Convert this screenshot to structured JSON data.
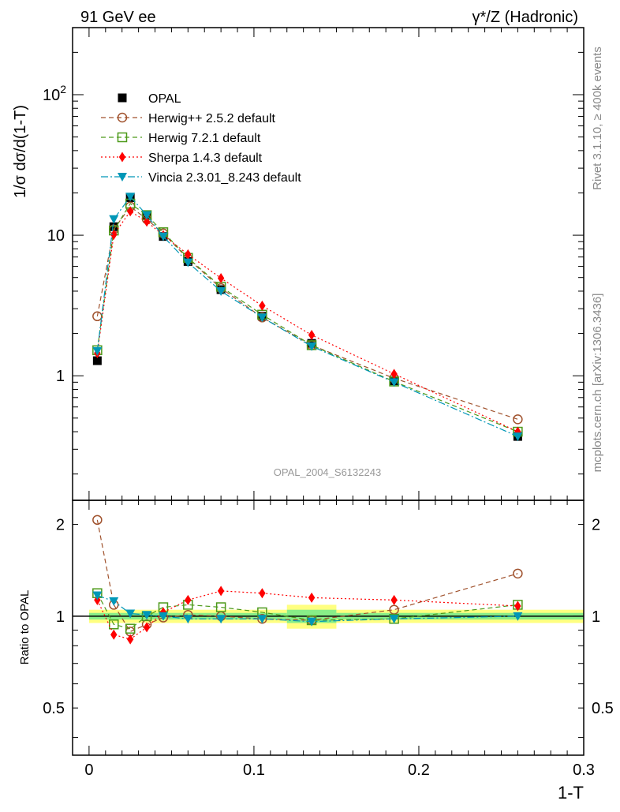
{
  "header": {
    "left": "91 GeV ee",
    "right": "γ*/Z (Hadronic)"
  },
  "side_text": {
    "top": "Rivet 3.1.10, ≥ 400k events",
    "bottom": "mcplots.cern.ch [arXiv:1306.3436]"
  },
  "watermark": "OPAL_2004_S6132243",
  "chart_data": [
    {
      "type": "scatter",
      "panel": "main",
      "ylabel": "1/σ dσ/d(1-T)",
      "xlim": [
        -0.01,
        0.3
      ],
      "ylim": [
        0.13,
        300
      ],
      "yscale": "log",
      "y_ticks": [
        {
          "value": 1,
          "label": "1"
        },
        {
          "value": 10,
          "label": "10"
        },
        {
          "value": 100,
          "label": "10",
          "sup": "2"
        }
      ],
      "x": [
        0.005,
        0.015,
        0.025,
        0.035,
        0.045,
        0.06,
        0.08,
        0.105,
        0.135,
        0.185,
        0.26
      ],
      "legend_placement": "top-left",
      "series": [
        {
          "name": "OPAL",
          "color": "#000000",
          "marker": "filled-square",
          "line": "none",
          "values": [
            1.28,
            11.5,
            18.5,
            13.8,
            9.8,
            6.5,
            4.1,
            2.65,
            1.7,
            0.92,
            0.37
          ]
        },
        {
          "name": "Herwig++ 2.5.2 default",
          "color": "#a0522d",
          "marker": "open-circle",
          "line": "dashed",
          "values": [
            2.65,
            11.0,
            16.0,
            13.0,
            10.3,
            6.8,
            4.2,
            2.6,
            1.65,
            0.96,
            0.49
          ]
        },
        {
          "name": "Herwig 7.2.1 default",
          "color": "#4d9a1a",
          "marker": "open-square",
          "line": "dashed",
          "values": [
            1.52,
            10.8,
            16.8,
            13.9,
            10.5,
            6.9,
            4.3,
            2.72,
            1.65,
            0.91,
            0.4
          ]
        },
        {
          "name": "Sherpa 1.4.3 default",
          "color": "#ff0000",
          "marker": "filled-diamond",
          "line": "dotted",
          "values": [
            1.45,
            10.1,
            14.8,
            12.5,
            10.0,
            7.3,
            4.95,
            3.15,
            1.95,
            1.03,
            0.4
          ]
        },
        {
          "name": "Vincia 2.3.01_8.243 default",
          "color": "#0097b7",
          "marker": "filled-triangle-down",
          "line": "dashdot",
          "values": [
            1.5,
            13.0,
            18.8,
            13.9,
            9.8,
            6.4,
            4.0,
            2.6,
            1.62,
            0.9,
            0.37
          ]
        }
      ]
    },
    {
      "type": "scatter",
      "panel": "ratio",
      "xlabel": "1-T",
      "ylabel": "Ratio to OPAL",
      "xlim": [
        -0.01,
        0.3
      ],
      "ylim": [
        0.35,
        2.4
      ],
      "yscale": "log",
      "y_ticks": [
        {
          "value": 0.5,
          "label": "0.5"
        },
        {
          "value": 1,
          "label": "1"
        },
        {
          "value": 2,
          "label": "2"
        }
      ],
      "x_ticks": [
        {
          "value": 0,
          "label": "0"
        },
        {
          "value": 0.1,
          "label": "0.1"
        },
        {
          "value": 0.2,
          "label": "0.2"
        },
        {
          "value": 0.3,
          "label": "0.3"
        }
      ],
      "x": [
        0.005,
        0.015,
        0.025,
        0.035,
        0.045,
        0.06,
        0.08,
        0.105,
        0.135,
        0.185,
        0.26
      ],
      "reference_line": 1.0,
      "uncertainty_bands": [
        {
          "x0": 0.0,
          "x1": 0.12,
          "yellow": [
            0.95,
            1.05
          ],
          "green": [
            0.975,
            1.025
          ]
        },
        {
          "x0": 0.12,
          "x1": 0.15,
          "yellow": [
            0.91,
            1.09
          ],
          "green": [
            0.95,
            1.05
          ]
        },
        {
          "x0": 0.15,
          "x1": 0.3,
          "yellow": [
            0.95,
            1.05
          ],
          "green": [
            0.975,
            1.025
          ]
        }
      ],
      "series": [
        {
          "name": "Herwig++ 2.5.2 default",
          "color": "#a0522d",
          "marker": "open-circle",
          "line": "dashed",
          "values": [
            2.07,
            1.09,
            0.89,
            0.94,
            0.99,
            1.01,
            1.0,
            0.98,
            0.97,
            1.05,
            1.38
          ]
        },
        {
          "name": "Herwig 7.2.1 default",
          "color": "#4d9a1a",
          "marker": "open-square",
          "line": "dashed",
          "values": [
            1.19,
            0.94,
            0.91,
            1.0,
            1.07,
            1.09,
            1.07,
            1.03,
            0.97,
            0.98,
            1.09
          ]
        },
        {
          "name": "Sherpa 1.4.3 default",
          "color": "#ff0000",
          "marker": "filled-diamond",
          "line": "dotted",
          "values": [
            1.13,
            0.87,
            0.84,
            0.92,
            1.03,
            1.13,
            1.21,
            1.19,
            1.15,
            1.13,
            1.08
          ]
        },
        {
          "name": "Vincia 2.3.01_8.243 default",
          "color": "#0097b7",
          "marker": "filled-triangle-down",
          "line": "dashdot",
          "values": [
            1.17,
            1.12,
            1.02,
            1.01,
            1.0,
            0.98,
            0.98,
            0.98,
            0.96,
            0.98,
            1.0
          ]
        }
      ]
    }
  ]
}
